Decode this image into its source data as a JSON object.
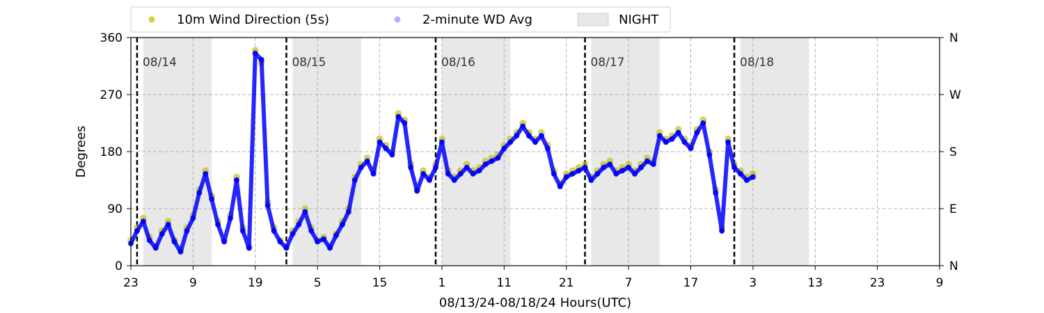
{
  "chart_data": {
    "type": "scatter",
    "title": "",
    "xlabel": "08/13/24-08/18/24  Hours(UTC)",
    "ylabel": "Degrees",
    "x_unit": "hours since 08/13/24 00:00 UTC",
    "xlim": [
      23,
      153
    ],
    "ylim": [
      0,
      360
    ],
    "grid": true,
    "legend_position": "top",
    "x_ticks": [
      {
        "x": 23,
        "label": "23"
      },
      {
        "x": 33,
        "label": "9"
      },
      {
        "x": 43,
        "label": "19"
      },
      {
        "x": 53,
        "label": "5"
      },
      {
        "x": 63,
        "label": "15"
      },
      {
        "x": 73,
        "label": "1"
      },
      {
        "x": 83,
        "label": "11"
      },
      {
        "x": 93,
        "label": "21"
      },
      {
        "x": 103,
        "label": "7"
      },
      {
        "x": 113,
        "label": "17"
      },
      {
        "x": 123,
        "label": "3"
      },
      {
        "x": 133,
        "label": "13"
      },
      {
        "x": 143,
        "label": "23"
      },
      {
        "x": 153,
        "label": "9"
      }
    ],
    "y_ticks": [
      0,
      90,
      180,
      270,
      360
    ],
    "y_ticks_right": [
      {
        "y": 0,
        "label": "N"
      },
      {
        "y": 90,
        "label": "E"
      },
      {
        "y": 180,
        "label": "S"
      },
      {
        "y": 270,
        "label": "W"
      },
      {
        "y": 360,
        "label": "N"
      }
    ],
    "day_markers": [
      {
        "x": 24,
        "label": "08/14"
      },
      {
        "x": 48,
        "label": "08/15"
      },
      {
        "x": 72,
        "label": "08/16"
      },
      {
        "x": 96,
        "label": "08/17"
      },
      {
        "x": 120,
        "label": "08/18"
      }
    ],
    "night_periods": [
      [
        25,
        36
      ],
      [
        49,
        60
      ],
      [
        73,
        84
      ],
      [
        97,
        108
      ],
      [
        121,
        132
      ]
    ],
    "legend": [
      {
        "label": "10m Wind Direction (5s)",
        "color": "#bfbf00"
      },
      {
        "label": "2-minute WD Avg",
        "color": "#0000ff"
      },
      {
        "label": "NIGHT",
        "color": "#e8e8e8"
      }
    ],
    "series": [
      {
        "name": "10m Wind Direction (5s)",
        "color": "#bfbf00",
        "x": [
          23,
          24,
          25,
          26,
          27,
          28,
          29,
          30,
          31,
          32,
          33,
          34,
          35,
          36,
          37,
          38,
          39,
          40,
          41,
          42,
          43,
          44,
          45,
          46,
          47,
          48,
          49,
          50,
          51,
          52,
          53,
          54,
          55,
          56,
          57,
          58,
          59,
          60,
          61,
          62,
          63,
          64,
          65,
          66,
          67,
          68,
          69,
          70,
          71,
          72,
          73,
          74,
          75,
          76,
          77,
          78,
          79,
          80,
          81,
          82,
          83,
          84,
          85,
          86,
          87,
          88,
          89,
          90,
          91,
          92,
          93,
          94,
          95,
          96,
          97,
          98,
          99,
          100,
          101,
          102,
          103,
          104,
          105,
          106,
          107,
          108,
          109,
          110,
          111,
          112,
          113,
          114,
          115,
          116,
          117,
          118,
          119,
          120,
          121,
          122,
          123
        ],
        "y": [
          40,
          60,
          75,
          45,
          30,
          55,
          70,
          40,
          25,
          60,
          80,
          120,
          150,
          110,
          70,
          40,
          80,
          140,
          60,
          30,
          340,
          320,
          100,
          60,
          40,
          30,
          55,
          70,
          90,
          60,
          40,
          45,
          30,
          50,
          70,
          90,
          140,
          160,
          170,
          150,
          200,
          190,
          180,
          240,
          230,
          160,
          120,
          150,
          140,
          160,
          200,
          150,
          140,
          150,
          160,
          150,
          155,
          165,
          170,
          175,
          190,
          200,
          210,
          225,
          210,
          200,
          210,
          190,
          150,
          130,
          145,
          150,
          155,
          160,
          140,
          150,
          160,
          165,
          150,
          155,
          160,
          150,
          160,
          170,
          165,
          210,
          200,
          205,
          215,
          200,
          190,
          215,
          230,
          180,
          120,
          60,
          200,
          160,
          150,
          140,
          145
        ]
      },
      {
        "name": "2-minute WD Avg",
        "color": "#0000ff",
        "x": [
          23,
          24,
          25,
          26,
          27,
          28,
          29,
          30,
          31,
          32,
          33,
          34,
          35,
          36,
          37,
          38,
          39,
          40,
          41,
          42,
          43,
          44,
          45,
          46,
          47,
          48,
          49,
          50,
          51,
          52,
          53,
          54,
          55,
          56,
          57,
          58,
          59,
          60,
          61,
          62,
          63,
          64,
          65,
          66,
          67,
          68,
          69,
          70,
          71,
          72,
          73,
          74,
          75,
          76,
          77,
          78,
          79,
          80,
          81,
          82,
          83,
          84,
          85,
          86,
          87,
          88,
          89,
          90,
          91,
          92,
          93,
          94,
          95,
          96,
          97,
          98,
          99,
          100,
          101,
          102,
          103,
          104,
          105,
          106,
          107,
          108,
          109,
          110,
          111,
          112,
          113,
          114,
          115,
          116,
          117,
          118,
          119,
          120,
          121,
          122,
          123
        ],
        "y": [
          35,
          55,
          70,
          40,
          28,
          50,
          65,
          38,
          22,
          55,
          75,
          115,
          145,
          105,
          65,
          38,
          75,
          135,
          55,
          28,
          335,
          325,
          95,
          55,
          38,
          28,
          50,
          65,
          85,
          55,
          38,
          42,
          28,
          48,
          65,
          85,
          135,
          155,
          165,
          145,
          195,
          185,
          175,
          235,
          225,
          155,
          118,
          145,
          135,
          155,
          195,
          145,
          135,
          145,
          155,
          145,
          150,
          160,
          165,
          170,
          185,
          195,
          205,
          220,
          205,
          195,
          205,
          185,
          145,
          125,
          140,
          145,
          150,
          155,
          135,
          145,
          155,
          160,
          145,
          150,
          155,
          145,
          155,
          165,
          160,
          205,
          195,
          200,
          210,
          195,
          185,
          210,
          225,
          175,
          115,
          55,
          195,
          155,
          145,
          135,
          140
        ]
      }
    ]
  }
}
